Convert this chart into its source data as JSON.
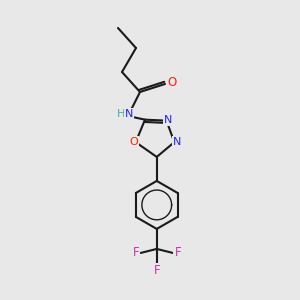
{
  "bg_color": "#e8e8e8",
  "bond_color": "#1a1a1a",
  "atom_colors": {
    "O": "#ff2000",
    "N": "#2020ff",
    "F": "#cc33aa",
    "H": "#44aaaa",
    "C": "#1a1a1a"
  },
  "figsize": [
    3.0,
    3.0
  ],
  "dpi": 100
}
